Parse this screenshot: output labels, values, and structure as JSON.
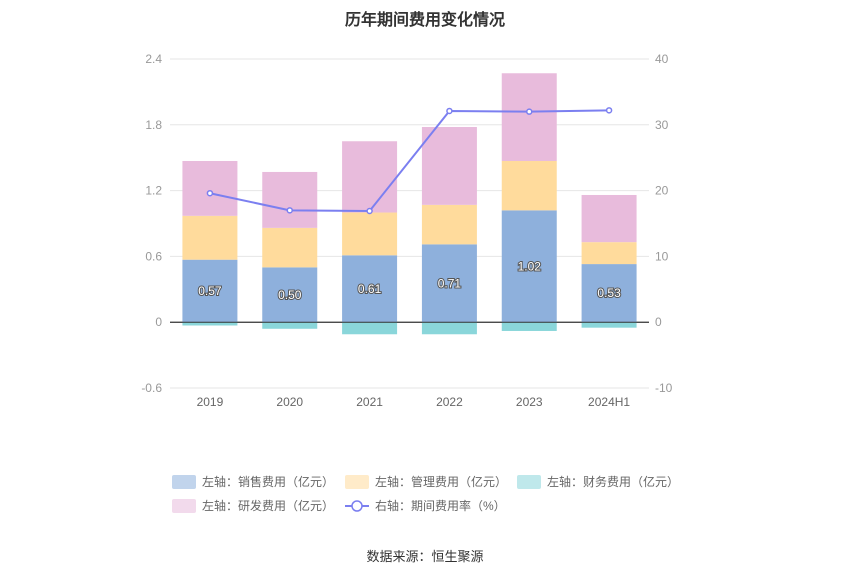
{
  "page": {
    "title": "历年期间费用变化情况",
    "source": "数据来源：恒生聚源"
  },
  "chart_data": {
    "type": "bar",
    "title": "历年期间费用变化情况",
    "categories": [
      "2019",
      "2020",
      "2021",
      "2022",
      "2023",
      "2024H1"
    ],
    "stacked": true,
    "left_axis": {
      "min": -0.6,
      "max": 2.4,
      "ticks": [
        "-0.6",
        "0",
        "0.6",
        "1.2",
        "1.8",
        "2.4"
      ]
    },
    "right_axis": {
      "min": -10,
      "max": 40,
      "ticks": [
        "-10",
        "0",
        "10",
        "20",
        "30",
        "40"
      ]
    },
    "grid": true,
    "legend_position": "bottom",
    "series": [
      {
        "name": "左轴：销售费用（亿元）",
        "type": "bar",
        "axis": "left",
        "color": "#8eb0dc",
        "values": [
          0.57,
          0.5,
          0.61,
          0.71,
          1.02,
          0.53
        ],
        "labels": [
          "0.57",
          "0.50",
          "0.61",
          "0.71",
          "1.02",
          "0.53"
        ]
      },
      {
        "name": "左轴：管理费用（亿元）",
        "type": "bar",
        "axis": "left",
        "color": "#ffdb9c",
        "values": [
          0.4,
          0.36,
          0.39,
          0.36,
          0.45,
          0.2
        ]
      },
      {
        "name": "左轴：财务费用（亿元）",
        "type": "bar",
        "axis": "left",
        "color": "#8ad6da",
        "values": [
          -0.03,
          -0.06,
          -0.11,
          -0.11,
          -0.08,
          -0.05
        ]
      },
      {
        "name": "左轴：研发费用（亿元）",
        "type": "bar",
        "axis": "left",
        "color": "#e8bbdc",
        "values": [
          0.5,
          0.51,
          0.65,
          0.71,
          0.8,
          0.43
        ]
      },
      {
        "name": "右轴：期间费用率（%）",
        "type": "line",
        "axis": "right",
        "color": "#7b7ff0",
        "values": [
          19.6,
          17.0,
          16.9,
          32.1,
          32.0,
          32.2
        ]
      }
    ]
  }
}
